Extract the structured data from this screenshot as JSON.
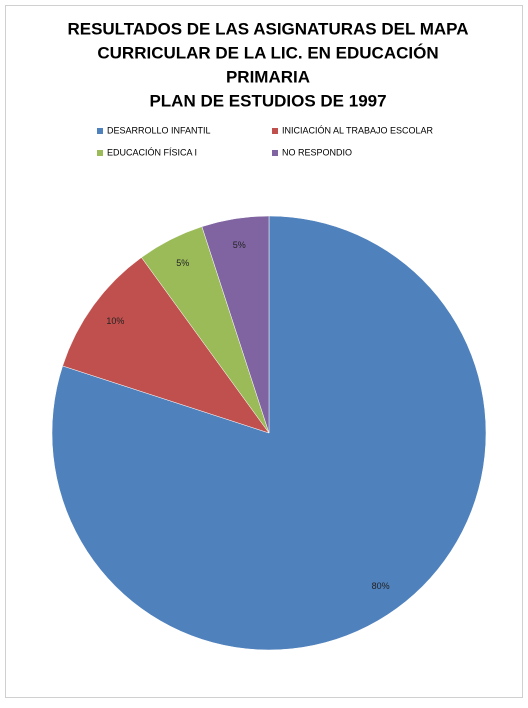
{
  "chart_data": {
    "type": "pie",
    "title": [
      "RESULTADOS DE LAS ASIGNATURAS DEL MAPA",
      "CURRICULAR DE LA LIC. EN EDUCACIÓN",
      "PRIMARIA",
      "PLAN DE ESTUDIOS DE 1997"
    ],
    "categories": [
      "DESARROLLO INFANTIL",
      "INICIACIÓN AL TRABAJO ESCOLAR",
      "EDUCACIÓN FÍSICA I",
      "NO RESPONDIO"
    ],
    "values": [
      80,
      10,
      5,
      5
    ],
    "value_labels": [
      "80%",
      "10%",
      "5%",
      "5%"
    ],
    "colors": [
      "#4f81bd",
      "#c0504d",
      "#9bbb59",
      "#8064a2"
    ],
    "legend": "top"
  }
}
